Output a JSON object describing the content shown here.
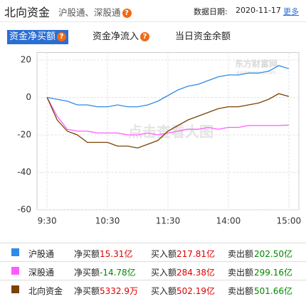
{
  "header": {
    "title": "北向资金",
    "subtitle": "沪股通、深股通",
    "help_mark": "?",
    "date_label": "数据日期:",
    "date": "2020-11-17",
    "more": "更多"
  },
  "tabs": [
    "资金净买额",
    "资金净流入",
    "当日资金余额"
  ],
  "chart_data": {
    "type": "line",
    "watermark": "点击查看大图",
    "logo": "东方财富网",
    "logo_url": "eastmoney.com",
    "x": [
      0,
      10,
      20,
      30,
      40,
      50,
      60,
      70,
      80,
      90,
      100,
      110,
      120,
      130,
      140,
      150,
      160,
      170,
      180,
      190,
      200,
      210,
      220,
      230,
      240
    ],
    "xlim": [
      -10,
      250
    ],
    "xticks": [
      {
        "value": 0,
        "label": "9:30"
      },
      {
        "value": 60,
        "label": "10:30"
      },
      {
        "value": 120,
        "label": "11:30"
      },
      {
        "value": 180,
        "label": "14:00"
      },
      {
        "value": 240,
        "label": "15:00"
      }
    ],
    "ylim": [
      -60,
      24
    ],
    "yticks": [
      20,
      0,
      -20,
      -40,
      -60
    ],
    "grid": true,
    "series": [
      {
        "name": "沪股通",
        "color": "#2f8ae8",
        "values": [
          0,
          -1,
          -2,
          -4,
          -4,
          -5,
          -5,
          -4,
          -5,
          -5,
          -4,
          -2,
          1,
          4,
          6,
          7,
          9,
          11,
          12,
          12,
          13,
          13,
          14,
          17,
          15.31
        ]
      },
      {
        "name": "深股通",
        "color": "#ff5cff",
        "values": [
          0,
          -10,
          -17,
          -18,
          -18,
          -19,
          -19,
          -19,
          -20,
          -20,
          -19,
          -20,
          -19,
          -18,
          -17,
          -17,
          -16,
          -17,
          -16,
          -16,
          -15,
          -15,
          -15,
          -15,
          -14.78
        ]
      },
      {
        "name": "北向资金",
        "color": "#7a4100",
        "values": [
          0,
          -12,
          -18,
          -20,
          -24,
          -24,
          -24,
          -26,
          -26,
          -27,
          -25,
          -23,
          -18,
          -15,
          -12,
          -10,
          -8,
          -6,
          -5,
          -5,
          -4,
          -3,
          -1,
          2,
          0.53
        ]
      }
    ]
  },
  "table": {
    "rows": [
      {
        "cells": [
          "净买额",
          "15.31亿",
          "买入额",
          "217.81亿",
          "卖出额",
          "202.50亿"
        ]
      },
      {
        "cells": [
          "净买额",
          "-14.78亿",
          "买入额",
          "284.38亿",
          "卖出额",
          "299.16亿"
        ]
      },
      {
        "cells": [
          "净买额",
          "5332.9万",
          "买入额",
          "502.19亿",
          "卖出额",
          "501.66亿"
        ]
      }
    ]
  }
}
